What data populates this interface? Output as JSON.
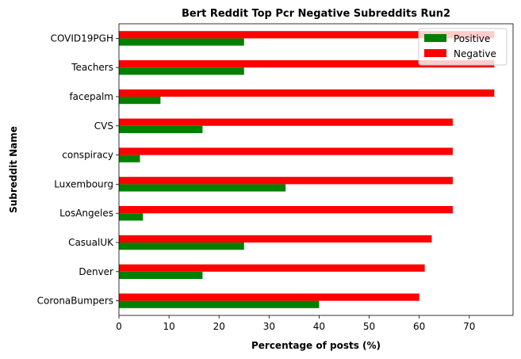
{
  "chart_data": {
    "type": "bar",
    "orientation": "horizontal",
    "title": "Bert Reddit Top Pcr Negative Subreddits Run2",
    "xlabel": "Percentage of posts (%)",
    "ylabel": "Subreddit Name",
    "categories": [
      "CoronaBumpers",
      "Denver",
      "CasualUK",
      "LosAngeles",
      "Luxembourg",
      "conspiracy",
      "CVS",
      "facepalm",
      "Teachers",
      "COVID19PGH"
    ],
    "series": [
      {
        "name": "Positive",
        "color": "#008000",
        "values": [
          40.0,
          16.7,
          25.0,
          4.8,
          33.3,
          4.2,
          16.7,
          8.3,
          25.0,
          25.0
        ]
      },
      {
        "name": "Negative",
        "color": "#ff0000",
        "values": [
          60.0,
          61.1,
          62.5,
          66.7,
          66.7,
          66.7,
          66.7,
          75.0,
          75.0,
          75.0
        ]
      }
    ],
    "xlim": [
      0,
      78.75
    ],
    "xticks": [
      0,
      10,
      20,
      30,
      40,
      50,
      60,
      70
    ],
    "grid": false,
    "legend_position": "top-right"
  }
}
